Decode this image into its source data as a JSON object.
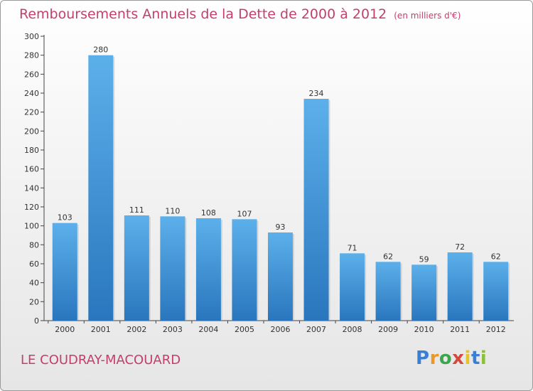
{
  "title": "Remboursements Annuels de la Dette de 2000 à 2012",
  "unit_note": "(en milliers d'€)",
  "commune": "LE COUDRAY-MACOUARD",
  "brand": "Proxiti",
  "brand_letters": [
    {
      "char": "P",
      "color": "#3a7fd4"
    },
    {
      "char": "r",
      "color": "#e8992a"
    },
    {
      "char": "o",
      "color": "#3aa84a"
    },
    {
      "char": "x",
      "color": "#d8483a"
    },
    {
      "char": "i",
      "color": "#e8c22a"
    },
    {
      "char": "t",
      "color": "#3a7fd4"
    },
    {
      "char": "i",
      "color": "#8bc13a"
    }
  ],
  "colors": {
    "title": "#c2406a",
    "bar_light": "#5aaee8",
    "bar_dark": "#2a78c0",
    "axis": "#444444"
  },
  "chart_data": {
    "type": "bar",
    "title": "Remboursements Annuels de la Dette de 2000 à 2012",
    "categories": [
      "2000",
      "2001",
      "2002",
      "2003",
      "2004",
      "2005",
      "2006",
      "2007",
      "2008",
      "2009",
      "2010",
      "2011",
      "2012"
    ],
    "values": [
      103,
      280,
      111,
      110,
      108,
      107,
      93,
      234,
      71,
      62,
      59,
      72,
      62
    ],
    "data_labels": [
      "103",
      "280",
      "111",
      "110",
      "108",
      "107",
      "93",
      "234",
      "71",
      "62",
      "59",
      "72",
      "62"
    ],
    "ylim": [
      0,
      300
    ],
    "yticks": [
      0,
      20,
      40,
      60,
      80,
      100,
      120,
      140,
      160,
      180,
      200,
      220,
      240,
      260,
      280,
      300
    ],
    "grid": false
  }
}
